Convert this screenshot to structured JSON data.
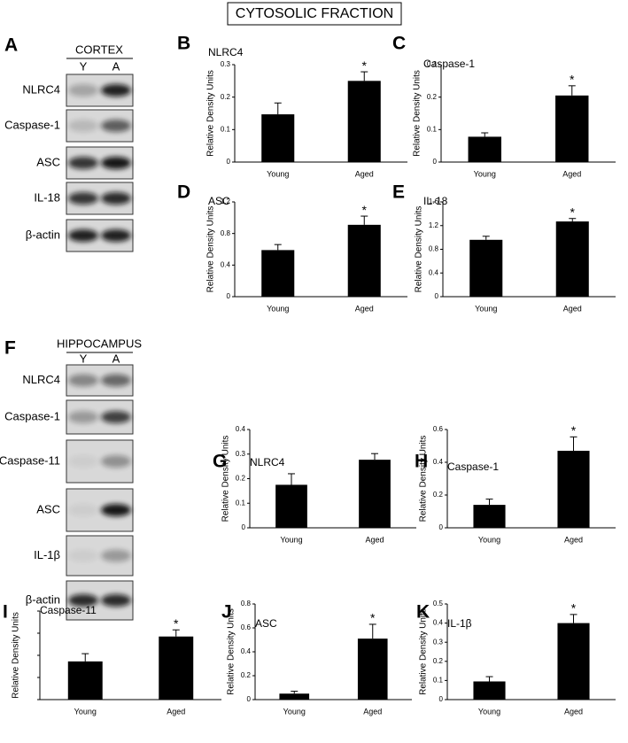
{
  "figure_title": "CYTOSOLIC FRACTION",
  "blots": [
    {
      "panel": "A",
      "region": "CORTEX",
      "lanes": [
        "Y",
        "A"
      ],
      "rows": [
        "NLRC4",
        "Caspase-1",
        "ASC",
        "IL-18",
        "β-actin"
      ]
    },
    {
      "panel": "F",
      "region": "HIPPOCAMPUS",
      "lanes": [
        "Y",
        "A"
      ],
      "rows": [
        "NLRC4",
        "Caspase-1",
        "Caspase-11",
        "ASC",
        "IL-1β",
        "β-actin"
      ]
    }
  ],
  "chart_data": [
    {
      "type": "bar",
      "panel": "B",
      "title": "NLRC4",
      "y_label": "Relative Density Units",
      "categories": [
        "Young",
        "Aged"
      ],
      "values": [
        0.147,
        0.25
      ],
      "errors": [
        0.035,
        0.028
      ],
      "value_annotations": [
        null,
        "*"
      ],
      "color": "#000000",
      "ylim": [
        0,
        0.3
      ],
      "yticks": [
        0,
        0.1,
        0.2,
        0.3
      ],
      "tick_labels": true
    },
    {
      "type": "bar",
      "panel": "C",
      "title": "Caspase-1",
      "y_label": "Relative Density Units",
      "categories": [
        "Young",
        "Aged"
      ],
      "values": [
        0.078,
        0.205
      ],
      "errors": [
        0.012,
        0.03
      ],
      "value_annotations": [
        null,
        "*"
      ],
      "color": "#000000",
      "ylim": [
        0,
        0.3
      ],
      "yticks": [
        0,
        0.1,
        0.2,
        0.3
      ],
      "tick_labels": true
    },
    {
      "type": "bar",
      "panel": "D",
      "title": "ASC",
      "y_label": "Relative Density Units",
      "categories": [
        "Young",
        "Aged"
      ],
      "values": [
        0.59,
        0.91
      ],
      "errors": [
        0.07,
        0.11
      ],
      "value_annotations": [
        null,
        "*"
      ],
      "color": "#000000",
      "ylim": [
        0,
        1.2
      ],
      "yticks": [
        0,
        0.4,
        0.8,
        1.2
      ],
      "tick_labels": true
    },
    {
      "type": "bar",
      "panel": "E",
      "title": "IL-18",
      "y_label": "Relative Density Units",
      "categories": [
        "Young",
        "Aged"
      ],
      "values": [
        0.96,
        1.27
      ],
      "errors": [
        0.06,
        0.05
      ],
      "value_annotations": [
        null,
        "*"
      ],
      "color": "#000000",
      "ylim": [
        0,
        1.6
      ],
      "yticks": [
        0,
        0.4,
        0.8,
        1.2,
        1.6
      ],
      "tick_labels": true
    },
    {
      "type": "bar",
      "panel": "G",
      "title": "NLRC4",
      "y_label": "Relative Density Units",
      "categories": [
        "Young",
        "Aged"
      ],
      "values": [
        0.175,
        0.277
      ],
      "errors": [
        0.045,
        0.025
      ],
      "value_annotations": [
        null,
        null
      ],
      "color": "#000000",
      "ylim": [
        0,
        0.4
      ],
      "yticks": [
        0,
        0.1,
        0.2,
        0.3,
        0.4
      ],
      "tick_labels": true
    },
    {
      "type": "bar",
      "panel": "H",
      "title": "Caspase-1",
      "y_label": "Relative Density Units",
      "categories": [
        "Young",
        "Aged"
      ],
      "values": [
        0.14,
        0.47
      ],
      "errors": [
        0.035,
        0.085
      ],
      "value_annotations": [
        null,
        "*"
      ],
      "color": "#000000",
      "ylim": [
        0,
        0.6
      ],
      "yticks": [
        0,
        0.2,
        0.4,
        0.6
      ],
      "tick_labels": true
    },
    {
      "type": "bar",
      "panel": "I",
      "title": "Caspase-11",
      "y_label": "Relative Density Units",
      "categories": [
        "Young",
        "Aged"
      ],
      "values": [
        0.345,
        0.57
      ],
      "errors": [
        0.07,
        0.06
      ],
      "value_annotations": [
        null,
        "*"
      ],
      "color": "#000000",
      "ylim": [
        0,
        0.8
      ],
      "yticks": [
        0,
        0.2,
        0.4,
        0.6,
        0.8
      ],
      "tick_labels": false
    },
    {
      "type": "bar",
      "panel": "J",
      "title": "ASC",
      "y_label": "Relative Density Units",
      "categories": [
        "Young",
        "Aged"
      ],
      "values": [
        0.05,
        0.51
      ],
      "errors": [
        0.02,
        0.12
      ],
      "value_annotations": [
        null,
        "*"
      ],
      "color": "#000000",
      "ylim": [
        0,
        0.8
      ],
      "yticks": [
        0,
        0.2,
        0.4,
        0.6,
        0.8
      ],
      "tick_labels": true
    },
    {
      "type": "bar",
      "panel": "K",
      "title": "IL-1β",
      "y_label": "Relative Density Units",
      "categories": [
        "Young",
        "Aged"
      ],
      "values": [
        0.095,
        0.4
      ],
      "errors": [
        0.025,
        0.045
      ],
      "value_annotations": [
        null,
        "*"
      ],
      "color": "#000000",
      "ylim": [
        0,
        0.5
      ],
      "yticks": [
        0,
        0.1,
        0.2,
        0.3,
        0.4,
        0.5
      ],
      "tick_labels": true
    }
  ]
}
